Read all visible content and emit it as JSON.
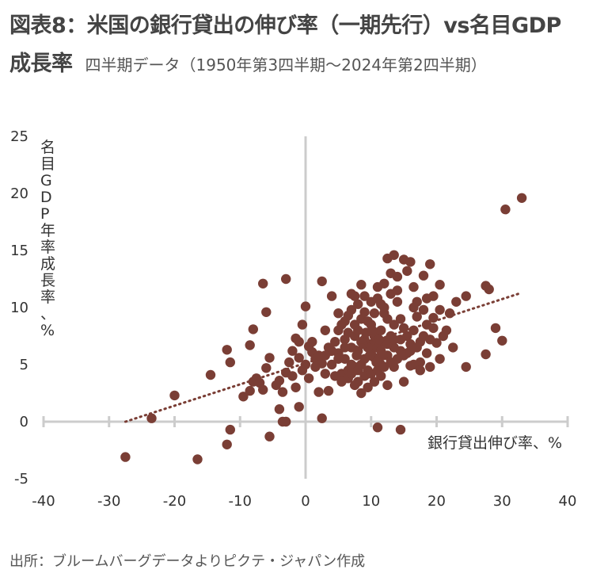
{
  "title": {
    "line1": "図表8：米国の銀行貸出の伸び率（一期先行）vs名目GDP",
    "line2_bold": "成長率",
    "subtitle": "四半期データ（1950年第3四半期～2024年第2四半期）"
  },
  "source": "出所：ブルームバーグデータよりピクテ・ジャパン作成",
  "colors": {
    "marker": "#7a3e35",
    "trend": "#7a3e35",
    "axis": "#cccccc",
    "text": "#333333"
  },
  "chart_data": {
    "type": "scatter",
    "xlabel": "銀行貸出伸び率、%",
    "ylabel": "名目GDP年率成長率、%",
    "xlim": [
      -40,
      40
    ],
    "ylim": [
      -5,
      25
    ],
    "xticks": [
      "-40",
      "-30",
      "-20",
      "-10",
      "0",
      "10",
      "20",
      "30",
      "40"
    ],
    "yticks": [
      "-5",
      "0",
      "5",
      "10",
      "15",
      "20",
      "25"
    ],
    "xtick_values": [
      -40,
      -30,
      -20,
      -10,
      0,
      10,
      20,
      30,
      40
    ],
    "ytick_values": [
      -5,
      0,
      5,
      10,
      15,
      20,
      25
    ],
    "trendline": {
      "style": "dotted",
      "from": [
        -27.5,
        0
      ],
      "to": [
        33,
        11.3
      ]
    },
    "points": [
      [
        -27.5,
        -3.1
      ],
      [
        -16.5,
        -3.3
      ],
      [
        -23.5,
        0.3
      ],
      [
        -20,
        2.3
      ],
      [
        -12,
        -2.0
      ],
      [
        -11.5,
        -0.7
      ],
      [
        -5.5,
        -1.3
      ],
      [
        -3,
        0.0
      ],
      [
        -3.5,
        0.0
      ],
      [
        -4,
        1.1
      ],
      [
        -1,
        1.3
      ],
      [
        2.5,
        0.3
      ],
      [
        -14.5,
        4.1
      ],
      [
        -12,
        6.3
      ],
      [
        -11.5,
        5.2
      ],
      [
        -9.5,
        2.2
      ],
      [
        -8.5,
        2.7
      ],
      [
        -8,
        3.5
      ],
      [
        -7.5,
        3.8
      ],
      [
        -7,
        3.4
      ],
      [
        -6.5,
        2.8
      ],
      [
        -6,
        4.7
      ],
      [
        -5.5,
        5.6
      ],
      [
        -4.5,
        3.2
      ],
      [
        -4,
        3.6
      ],
      [
        -3.5,
        2.6
      ],
      [
        -3,
        4.3
      ],
      [
        -2.5,
        5.2
      ],
      [
        -2,
        4.0
      ],
      [
        -1.5,
        3.0
      ],
      [
        -1,
        5.6
      ],
      [
        -0.5,
        4.5
      ],
      [
        0,
        5.0
      ],
      [
        0.5,
        3.8
      ],
      [
        1,
        6.1
      ],
      [
        1.5,
        5.5
      ],
      [
        2,
        2.6
      ],
      [
        2.5,
        5.1
      ],
      [
        3,
        4.2
      ],
      [
        3.5,
        2.7
      ],
      [
        -8.5,
        6.7
      ],
      [
        -8,
        8.1
      ],
      [
        -6.5,
        12.1
      ],
      [
        -3,
        12.5
      ],
      [
        -6,
        9.6
      ],
      [
        -1,
        7.0
      ],
      [
        -0.5,
        8.5
      ],
      [
        0,
        10.1
      ],
      [
        2.5,
        12.3
      ],
      [
        1,
        7.0
      ],
      [
        2,
        5.8
      ],
      [
        3,
        8.0
      ],
      [
        -2,
        6.2
      ],
      [
        -1.5,
        7.3
      ],
      [
        0.5,
        6.6
      ],
      [
        1.5,
        4.8
      ],
      [
        4,
        11.0
      ],
      [
        5,
        9.5
      ],
      [
        6,
        8.8
      ],
      [
        7,
        11.2
      ],
      [
        7.5,
        11.0
      ],
      [
        8.5,
        12.0
      ],
      [
        9,
        11.0
      ],
      [
        10,
        10.5
      ],
      [
        11,
        11.8
      ],
      [
        11.5,
        10.3
      ],
      [
        12,
        12.1
      ],
      [
        12.5,
        14.3
      ],
      [
        13,
        13.0
      ],
      [
        13.5,
        14.6
      ],
      [
        14,
        12.7
      ],
      [
        15,
        14.2
      ],
      [
        15.5,
        13.2
      ],
      [
        16,
        14.0
      ],
      [
        16.5,
        11.8
      ],
      [
        17,
        10.5
      ],
      [
        18,
        12.8
      ],
      [
        19,
        13.8
      ],
      [
        19.5,
        11.0
      ],
      [
        20.5,
        12.0
      ],
      [
        22,
        9.5
      ],
      [
        23,
        10.5
      ],
      [
        24.5,
        11.0
      ],
      [
        27.5,
        11.9
      ],
      [
        28,
        11.6
      ],
      [
        29,
        8.2
      ],
      [
        30,
        7.1
      ],
      [
        27.5,
        5.9
      ],
      [
        24.5,
        4.8
      ],
      [
        22.5,
        6.5
      ],
      [
        21,
        7.5
      ],
      [
        20,
        6.9
      ],
      [
        19.5,
        9.1
      ],
      [
        18.5,
        8.5
      ],
      [
        17.5,
        5.2
      ],
      [
        16,
        4.9
      ],
      [
        15,
        3.5
      ],
      [
        14.5,
        6.2
      ],
      [
        13.5,
        4.8
      ],
      [
        12.5,
        3.2
      ],
      [
        11.5,
        4.0
      ],
      [
        11,
        -0.5
      ],
      [
        14.5,
        -0.7
      ],
      [
        10.5,
        5.6
      ],
      [
        10,
        6.8
      ],
      [
        9.5,
        4.5
      ],
      [
        9,
        7.2
      ],
      [
        8.5,
        5.0
      ],
      [
        8,
        3.5
      ],
      [
        7.5,
        4.8
      ],
      [
        7,
        6.5
      ],
      [
        6.5,
        7.8
      ],
      [
        6,
        5.5
      ],
      [
        5.5,
        4.2
      ],
      [
        5,
        6.0
      ],
      [
        4.5,
        7.0
      ],
      [
        4,
        5.0
      ],
      [
        3.5,
        6.5
      ],
      [
        4.5,
        4.0
      ],
      [
        5.5,
        8.5
      ],
      [
        6.5,
        9.3
      ],
      [
        7.5,
        7.5
      ],
      [
        8.5,
        9.0
      ],
      [
        9.5,
        8.8
      ],
      [
        10.5,
        9.5
      ],
      [
        11.5,
        8.0
      ],
      [
        12.5,
        9.0
      ],
      [
        13.5,
        8.5
      ],
      [
        14.5,
        9.0
      ],
      [
        15.5,
        7.5
      ],
      [
        16.5,
        8.0
      ],
      [
        17.5,
        7.0
      ],
      [
        18.5,
        6.0
      ],
      [
        19,
        4.8
      ],
      [
        20.5,
        5.5
      ],
      [
        21.5,
        8.0
      ],
      [
        18,
        9.8
      ],
      [
        16.5,
        10.0
      ],
      [
        14,
        10.5
      ],
      [
        12,
        9.5
      ],
      [
        10,
        8.5
      ],
      [
        8,
        8.0
      ],
      [
        6,
        6.5
      ],
      [
        5,
        5.5
      ],
      [
        4,
        6.2
      ],
      [
        3,
        5.8
      ],
      [
        6.5,
        4.5
      ],
      [
        7.5,
        3.2
      ],
      [
        8.5,
        2.5
      ],
      [
        9.5,
        3.0
      ],
      [
        10.5,
        3.5
      ],
      [
        11.5,
        5.0
      ],
      [
        12.5,
        5.8
      ],
      [
        13.5,
        6.5
      ],
      [
        14.5,
        7.2
      ],
      [
        15.5,
        6.0
      ],
      [
        16.5,
        5.0
      ],
      [
        17.5,
        4.5
      ],
      [
        10,
        6.0
      ],
      [
        9,
        5.5
      ],
      [
        8,
        6.2
      ],
      [
        7,
        5.0
      ],
      [
        11,
        6.5
      ],
      [
        12,
        7.0
      ],
      [
        13,
        7.5
      ],
      [
        6,
        7.2
      ],
      [
        5,
        8.0
      ],
      [
        7.5,
        8.5
      ],
      [
        8.5,
        7.0
      ],
      [
        9.5,
        6.5
      ],
      [
        10.5,
        7.5
      ],
      [
        11.5,
        6.2
      ],
      [
        12.5,
        6.8
      ],
      [
        13.5,
        7.2
      ],
      [
        15,
        8.2
      ],
      [
        16,
        6.8
      ],
      [
        17,
        9.2
      ],
      [
        18.5,
        10.8
      ],
      [
        19.5,
        8.2
      ],
      [
        20.5,
        9.8
      ],
      [
        7,
        9.8
      ],
      [
        8,
        10.3
      ],
      [
        9,
        9.6
      ],
      [
        11,
        10.8
      ],
      [
        12,
        10.0
      ],
      [
        13,
        11.2
      ],
      [
        14,
        11.5
      ],
      [
        6.5,
        3.8
      ],
      [
        5.5,
        3.5
      ],
      [
        7,
        4.2
      ],
      [
        8,
        4.5
      ],
      [
        9,
        4.0
      ],
      [
        10,
        4.2
      ],
      [
        11,
        4.5
      ],
      [
        12,
        4.8
      ],
      [
        13,
        5.2
      ],
      [
        14,
        5.5
      ],
      [
        15,
        5.8
      ],
      [
        16,
        6.2
      ],
      [
        17,
        6.5
      ],
      [
        18,
        7.5
      ],
      [
        19,
        7.2
      ],
      [
        9.8,
        5.8
      ],
      [
        8.8,
        6.8
      ],
      [
        7.8,
        5.8
      ],
      [
        10.8,
        5.2
      ],
      [
        11.8,
        5.8
      ],
      [
        9.2,
        7.8
      ],
      [
        10.2,
        8.0
      ],
      [
        11.2,
        7.2
      ],
      [
        30.5,
        18.6
      ],
      [
        33,
        19.6
      ]
    ]
  }
}
